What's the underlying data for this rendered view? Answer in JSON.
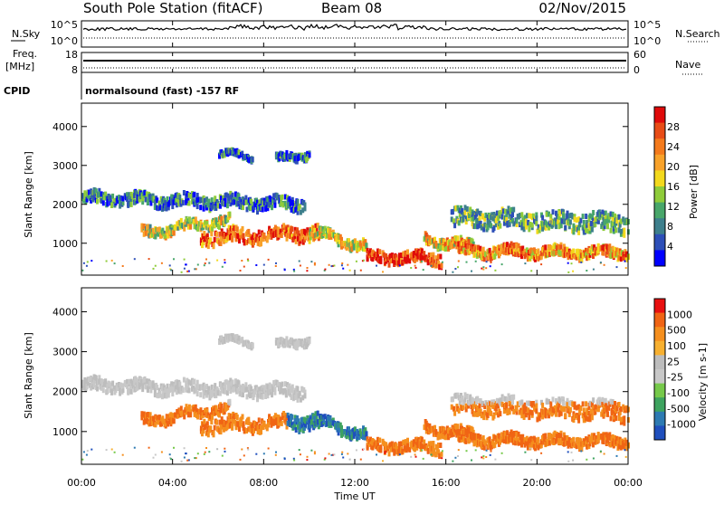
{
  "header": {
    "station": "South Pole Station (fitACF)",
    "beam": "Beam 08",
    "date": "02/Nov/2015"
  },
  "panels": {
    "nsky_label": "N.Sky",
    "nsky_ticks": [
      "10^5",
      "10^0"
    ],
    "nsearch_label": "N.Search",
    "nsearch_ticks": [
      "10^5",
      "10^0"
    ],
    "freq_label_1": "Freq.",
    "freq_label_2": "[MHz]",
    "freq_ticks": [
      "18",
      "8"
    ],
    "nave_label": "Nave",
    "nave_ticks": [
      "60",
      "0"
    ],
    "cpid_label": "CPID",
    "cpid_text": "normalsound (fast) -157 RF"
  },
  "chart_data": [
    {
      "type": "heatmap",
      "name": "power",
      "ylabel": "Slant Range [km]",
      "yticks": [
        "4000",
        "3000",
        "2000",
        "1000"
      ],
      "ylim": [
        180,
        4600
      ],
      "xlim": [
        0,
        24
      ],
      "xticks": [
        "00:00",
        "04:00",
        "08:00",
        "12:00",
        "16:00",
        "20:00",
        "00:00"
      ],
      "colorbar": {
        "label": "Power [dB]",
        "ticks": [
          "28",
          "24",
          "20",
          "16",
          "12",
          "8",
          "4"
        ],
        "colors": [
          "#0000ff",
          "#2d4fb8",
          "#3d7f8c",
          "#48a66a",
          "#8fcc3a",
          "#f3d91d",
          "#f8a22a",
          "#f47a1c",
          "#e84c16",
          "#df0a0a"
        ]
      }
    },
    {
      "type": "heatmap",
      "name": "velocity",
      "ylabel": "Slant Range [km]",
      "yticks": [
        "4000",
        "3000",
        "2000",
        "1000"
      ],
      "ylim": [
        180,
        4600
      ],
      "xlim": [
        0,
        24
      ],
      "xticks": [
        "00:00",
        "04:00",
        "08:00",
        "12:00",
        "16:00",
        "20:00",
        "00:00"
      ],
      "xlabel": "Time UT",
      "colorbar": {
        "label": "Velocity [m s-1]",
        "ticks": [
          "1000",
          "500",
          "100",
          "25",
          "-25",
          "-100",
          "-500",
          "-1000"
        ],
        "colors": [
          "#1f4fbd",
          "#2d7ab2",
          "#3ea35f",
          "#76c94a",
          "#c8c8c8",
          "#bdbdbd",
          "#f7b030",
          "#f58f1e",
          "#f06414",
          "#e81010"
        ]
      }
    }
  ],
  "colors": {
    "frame": "#000000",
    "noise": "#000000"
  }
}
